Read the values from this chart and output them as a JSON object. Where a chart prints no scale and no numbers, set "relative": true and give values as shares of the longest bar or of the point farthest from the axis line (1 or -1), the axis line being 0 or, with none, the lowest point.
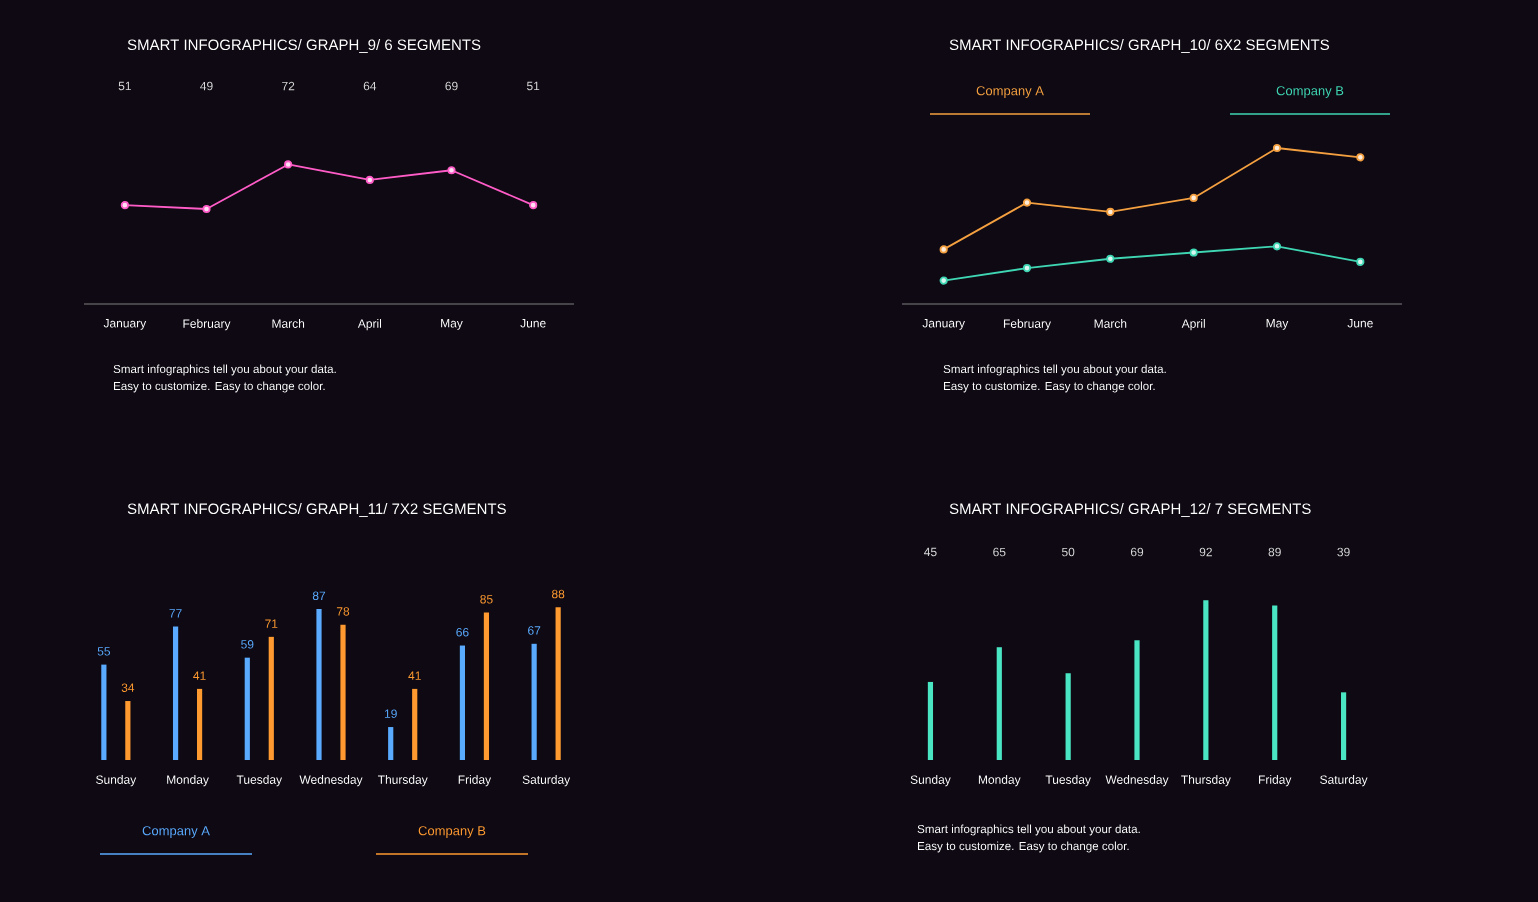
{
  "chart_data": [
    {
      "type": "line",
      "title": "SMART INFOGRAPHICS/ GRAPH_9/ 6 SEGMENTS",
      "categories": [
        "January",
        "February",
        "March",
        "April",
        "May",
        "June"
      ],
      "values": [
        51,
        49,
        72,
        64,
        69,
        51
      ],
      "color": "#ff5cc8",
      "data_labels": true,
      "marker": "circle",
      "tick_labels": "x",
      "annotations": [
        "Smart infographics tell you about your data.",
        "Easy to customize. Easy to change color."
      ]
    },
    {
      "type": "line",
      "title": "SMART INFOGRAPHICS/ GRAPH_10/ 6X2 SEGMENTS",
      "categories": [
        "January",
        "February",
        "March",
        "April",
        "May",
        "June"
      ],
      "relative": true,
      "marker": "circle",
      "legend": "top",
      "tick_labels": "x",
      "series": [
        {
          "name": "Company A",
          "color": "#f5a040",
          "values": [
            0.35,
            0.65,
            0.59,
            0.68,
            1.0,
            0.94
          ]
        },
        {
          "name": "Company B",
          "color": "#3fd6b4",
          "values": [
            0.15,
            0.23,
            0.29,
            0.33,
            0.37,
            0.27
          ]
        }
      ],
      "annotations": [
        "Smart infographics tell you about your data.",
        "Easy to customize. Easy to change color."
      ]
    },
    {
      "type": "bar",
      "title": "SMART INFOGRAPHICS/ GRAPH_11/ 7X2 SEGMENTS",
      "categories": [
        "Sunday",
        "Monday",
        "Tuesday",
        "Wednesday",
        "Thursday",
        "Friday",
        "Saturday"
      ],
      "data_labels": true,
      "legend": "bottom",
      "tick_labels": "x",
      "series": [
        {
          "name": "Company A",
          "color": "#5aaaff",
          "values": [
            55,
            77,
            59,
            87,
            19,
            66,
            67
          ]
        },
        {
          "name": "Company B",
          "color": "#ff9a30",
          "values": [
            34,
            41,
            71,
            78,
            41,
            85,
            88
          ]
        }
      ]
    },
    {
      "type": "bar",
      "title": "SMART INFOGRAPHICS/ GRAPH_12/ 7 SEGMENTS",
      "categories": [
        "Sunday",
        "Monday",
        "Tuesday",
        "Wednesday",
        "Thursday",
        "Friday",
        "Saturday"
      ],
      "values": [
        45,
        65,
        50,
        69,
        92,
        89,
        39
      ],
      "color": "#4ae6c4",
      "data_labels": true,
      "tick_labels": "x",
      "annotations": [
        "Smart infographics tell you about your data.",
        "Easy to customize. Easy to change color."
      ]
    }
  ]
}
